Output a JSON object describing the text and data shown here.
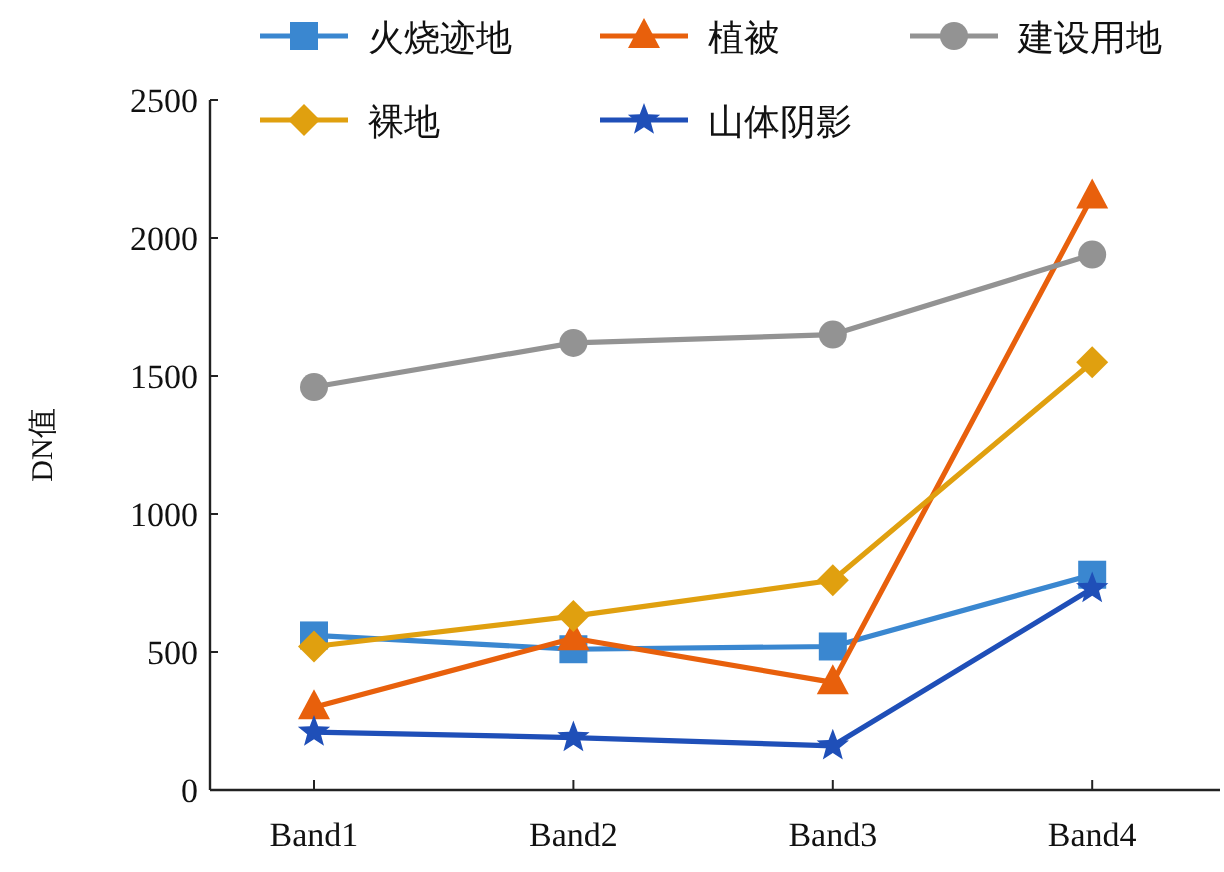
{
  "chart_data": {
    "type": "line",
    "ylabel": "DN值",
    "categories": [
      "Band1",
      "Band2",
      "Band3",
      "Band4"
    ],
    "ylim": [
      0,
      2500
    ],
    "yticks": [
      0,
      500,
      1000,
      1500,
      2000,
      2500
    ],
    "legend": "top",
    "grid": false,
    "series": [
      {
        "name": "火烧迹地",
        "color": "#3a87d0",
        "marker": "square",
        "values": [
          560,
          510,
          520,
          780
        ]
      },
      {
        "name": "植被",
        "color": "#e8600c",
        "marker": "triangle",
        "values": [
          300,
          550,
          390,
          2150
        ]
      },
      {
        "name": "建设用地",
        "color": "#939393",
        "marker": "circle",
        "values": [
          1460,
          1620,
          1650,
          1940
        ]
      },
      {
        "name": "裸地",
        "color": "#e0a00f",
        "marker": "diamond",
        "values": [
          520,
          630,
          760,
          1550
        ]
      },
      {
        "name": "山体阴影",
        "color": "#1f4fb8",
        "marker": "star",
        "values": [
          210,
          190,
          160,
          730
        ]
      }
    ]
  }
}
